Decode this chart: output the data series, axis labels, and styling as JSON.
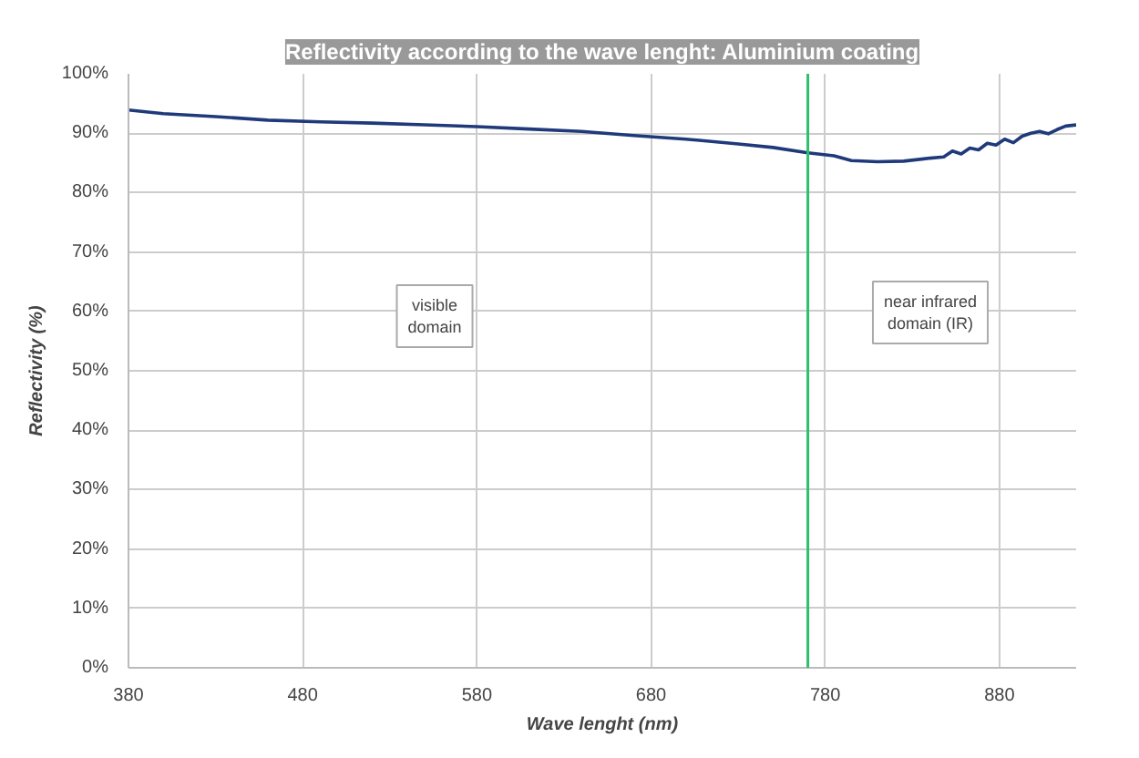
{
  "chart_data": {
    "type": "line",
    "title": "Reflectivity according to the wave lenght: Aluminium coating",
    "xlabel": "Wave lenght (nm)",
    "ylabel": "Reflectivity (%)",
    "x": [
      380,
      400,
      430,
      460,
      490,
      520,
      550,
      580,
      610,
      640,
      670,
      700,
      730,
      750,
      770,
      785,
      795,
      810,
      825,
      840,
      848,
      853,
      858,
      863,
      868,
      873,
      878,
      883,
      888,
      893,
      898,
      903,
      908,
      913,
      918,
      924
    ],
    "series": [
      {
        "color": "#1f3a7a",
        "values": [
          93.9,
          93.3,
          92.8,
          92.2,
          91.9,
          91.7,
          91.4,
          91.1,
          90.7,
          90.3,
          89.6,
          89.0,
          88.2,
          87.6,
          86.7,
          86.2,
          85.4,
          85.2,
          85.3,
          85.8,
          86.0,
          87.0,
          86.5,
          87.5,
          87.2,
          88.3,
          88.0,
          89.0,
          88.4,
          89.5,
          90.0,
          90.3,
          89.9,
          90.6,
          91.2,
          91.4
        ]
      }
    ],
    "xlim": [
      380,
      924
    ],
    "xticks": [
      380,
      480,
      580,
      680,
      780,
      880
    ],
    "ylim": [
      0,
      100
    ],
    "yticks": [
      {
        "value": 0,
        "label": "0%"
      },
      {
        "value": 10,
        "label": "10%"
      },
      {
        "value": 20,
        "label": "20%"
      },
      {
        "value": 30,
        "label": "30%"
      },
      {
        "value": 40,
        "label": "40%"
      },
      {
        "value": 50,
        "label": "50%"
      },
      {
        "value": 60,
        "label": "60%"
      },
      {
        "value": 70,
        "label": "70%"
      },
      {
        "value": 80,
        "label": "80%"
      },
      {
        "value": 90,
        "label": "90%"
      },
      {
        "value": 100,
        "label": "100%"
      }
    ],
    "grid": true,
    "marker": "none",
    "line_style": "solid",
    "ref_lines": [
      {
        "axis": "x",
        "value": 770,
        "color": "#2dbf6e"
      }
    ],
    "annotations": [
      "visible\ndomain",
      "near infrared\ndomain (IR)"
    ]
  }
}
